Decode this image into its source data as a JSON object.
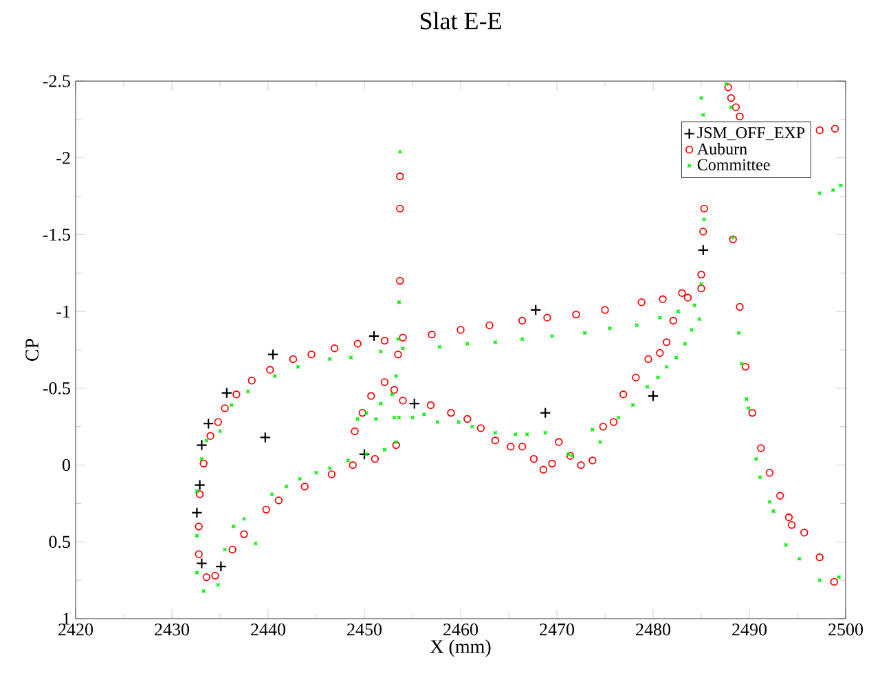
{
  "chart_data": {
    "type": "scatter",
    "title": "Slat E-E",
    "xlabel": "X (mm)",
    "ylabel": "CP",
    "xlim": [
      2420,
      2500
    ],
    "xticks": [
      2420,
      2430,
      2440,
      2450,
      2460,
      2470,
      2480,
      2490,
      2500
    ],
    "ylim": [
      1,
      -2.5
    ],
    "yticks": [
      -2.5,
      -2,
      -1.5,
      -1,
      -0.5,
      0,
      0.5,
      1
    ],
    "legend": "top right",
    "series": [
      {
        "name": "JSM_OFF_EXP",
        "color": "#000000",
        "marker": "plus",
        "x": [
          2432.6,
          2432.9,
          2433.1,
          2433.8,
          2435.7,
          2440.5,
          2439.7,
          2451.0,
          2450.0,
          2433.1,
          2435.1,
          2455.2,
          2467.8,
          2468.8,
          2480.0,
          2485.2
        ],
        "values": [
          0.31,
          0.13,
          -0.13,
          -0.27,
          -0.47,
          -0.72,
          -0.18,
          -0.84,
          -0.07,
          0.64,
          0.66,
          -0.4,
          -1.01,
          -0.34,
          -0.45,
          -1.4
        ]
      },
      {
        "name": "Auburn",
        "color": "#ff0000",
        "marker": "circle",
        "x": [
          2432.8,
          2432.8,
          2432.9,
          2433.3,
          2434.0,
          2434.8,
          2435.5,
          2436.7,
          2438.3,
          2440.2,
          2442.6,
          2444.5,
          2446.9,
          2449.3,
          2452.1,
          2433.6,
          2434.5,
          2436.3,
          2437.5,
          2439.8,
          2441.1,
          2443.8,
          2446.6,
          2448.8,
          2451.1,
          2453.3,
          2453.7,
          2453.7,
          2453.7,
          2453.5,
          2449.0,
          2449.8,
          2450.7,
          2452.1,
          2453.1,
          2454.0,
          2456.9,
          2459.0,
          2460.7,
          2462.1,
          2463.6,
          2465.2,
          2466.4,
          2467.6,
          2468.6,
          2469.5,
          2470.2,
          2471.4,
          2472.5,
          2473.7,
          2474.8,
          2475.9,
          2476.9,
          2478.2,
          2479.5,
          2480.7,
          2481.4,
          2482.1,
          2483.6,
          2485.0,
          2454.0,
          2457.0,
          2460.0,
          2463.0,
          2466.4,
          2469.0,
          2472.0,
          2475.0,
          2478.8,
          2481.0,
          2483.0,
          2485.0,
          2485.2,
          2485.3,
          2487.8,
          2488.1,
          2488.6,
          2489.0,
          2497.3,
          2498.9,
          2488.3,
          2489.0,
          2489.6,
          2490.3,
          2491.2,
          2492.1,
          2493.2,
          2494.1,
          2494.4,
          2495.7,
          2497.3,
          2498.8
        ],
        "values": [
          0.58,
          0.4,
          0.19,
          -0.01,
          -0.19,
          -0.28,
          -0.37,
          -0.46,
          -0.55,
          -0.62,
          -0.69,
          -0.72,
          -0.76,
          -0.79,
          -0.81,
          0.73,
          0.72,
          0.55,
          0.45,
          0.29,
          0.23,
          0.14,
          0.06,
          0.0,
          -0.04,
          -0.13,
          -1.88,
          -1.67,
          -1.2,
          -0.72,
          -0.22,
          -0.34,
          -0.45,
          -0.54,
          -0.49,
          -0.42,
          -0.39,
          -0.34,
          -0.3,
          -0.24,
          -0.16,
          -0.12,
          -0.12,
          -0.04,
          0.03,
          -0.01,
          -0.15,
          -0.06,
          0.0,
          -0.03,
          -0.25,
          -0.28,
          -0.46,
          -0.57,
          -0.69,
          -0.73,
          -0.8,
          -0.94,
          -1.09,
          -1.15,
          -0.83,
          -0.85,
          -0.88,
          -0.91,
          -0.94,
          -0.96,
          -0.98,
          -1.01,
          -1.06,
          -1.08,
          -1.12,
          -1.24,
          -1.52,
          -1.67,
          -2.46,
          -2.39,
          -2.33,
          -2.27,
          -2.18,
          -2.19,
          -1.47,
          -1.03,
          -0.64,
          -0.34,
          -0.11,
          0.05,
          0.2,
          0.34,
          0.39,
          0.44,
          0.6,
          0.76
        ]
      },
      {
        "name": "Committee",
        "color": "#00ee00",
        "marker": "cross",
        "x": [
          2435.0,
          2436.2,
          2437.9,
          2440.7,
          2443.1,
          2446.4,
          2448.6,
          2451.7,
          2454.0,
          2457.8,
          2460.7,
          2463.6,
          2466.4,
          2469.5,
          2472.9,
          2475.5,
          2478.3,
          2480.7,
          2482.6,
          2484.3,
          2485.0,
          2432.6,
          2432.6,
          2433.1,
          2433.6,
          2432.6,
          2433.3,
          2434.8,
          2435.5,
          2436.4,
          2437.5,
          2438.7,
          2440.4,
          2441.9,
          2443.3,
          2445.0,
          2446.4,
          2448.3,
          2450.2,
          2452.1,
          2453.3,
          2449.3,
          2451.2,
          2453.1,
          2453.6,
          2455.0,
          2450.2,
          2451.7,
          2452.9,
          2453.3,
          2453.7,
          2453.6,
          2453.5,
          2456.2,
          2457.6,
          2459.8,
          2461.2,
          2463.6,
          2465.7,
          2466.9,
          2468.8,
          2471.2,
          2471.6,
          2473.7,
          2474.5,
          2476.4,
          2477.9,
          2479.4,
          2480.5,
          2481.4,
          2482.4,
          2483.3,
          2484.0,
          2484.8,
          2485.0,
          2485.2,
          2485.3,
          2487.6,
          2488.1,
          2488.3,
          2488.9,
          2489.2,
          2489.7,
          2489.9,
          2490.7,
          2491.1,
          2492.1,
          2492.5,
          2493.8,
          2495.2,
          2497.3,
          2499.3,
          2497.3,
          2498.7,
          2499.5
        ],
        "values": [
          -0.22,
          -0.39,
          -0.48,
          -0.58,
          -0.64,
          -0.69,
          -0.7,
          -0.74,
          -0.76,
          -0.77,
          -0.79,
          -0.8,
          -0.82,
          -0.84,
          -0.86,
          -0.89,
          -0.91,
          -0.96,
          -1.0,
          -1.04,
          -1.18,
          0.46,
          0.17,
          -0.04,
          -0.16,
          0.7,
          0.82,
          0.78,
          0.55,
          0.4,
          0.35,
          0.51,
          0.19,
          0.14,
          0.09,
          0.05,
          0.02,
          -0.03,
          -0.07,
          -0.1,
          -0.15,
          -0.3,
          -0.3,
          -0.31,
          -0.31,
          -0.31,
          -0.34,
          -0.4,
          -0.46,
          -0.58,
          -2.04,
          -1.06,
          -0.82,
          -0.33,
          -0.28,
          -0.28,
          -0.25,
          -0.21,
          -0.2,
          -0.2,
          -0.21,
          -0.07,
          -0.06,
          -0.23,
          -0.15,
          -0.31,
          -0.39,
          -0.51,
          -0.57,
          -0.64,
          -0.7,
          -0.79,
          -0.88,
          -0.95,
          -2.39,
          -2.28,
          -1.6,
          -2.48,
          -2.33,
          -1.48,
          -0.86,
          -0.66,
          -0.43,
          -0.37,
          -0.04,
          0.08,
          0.24,
          0.3,
          0.52,
          0.61,
          0.75,
          0.73,
          -1.77,
          -1.79,
          -1.82
        ]
      }
    ]
  }
}
